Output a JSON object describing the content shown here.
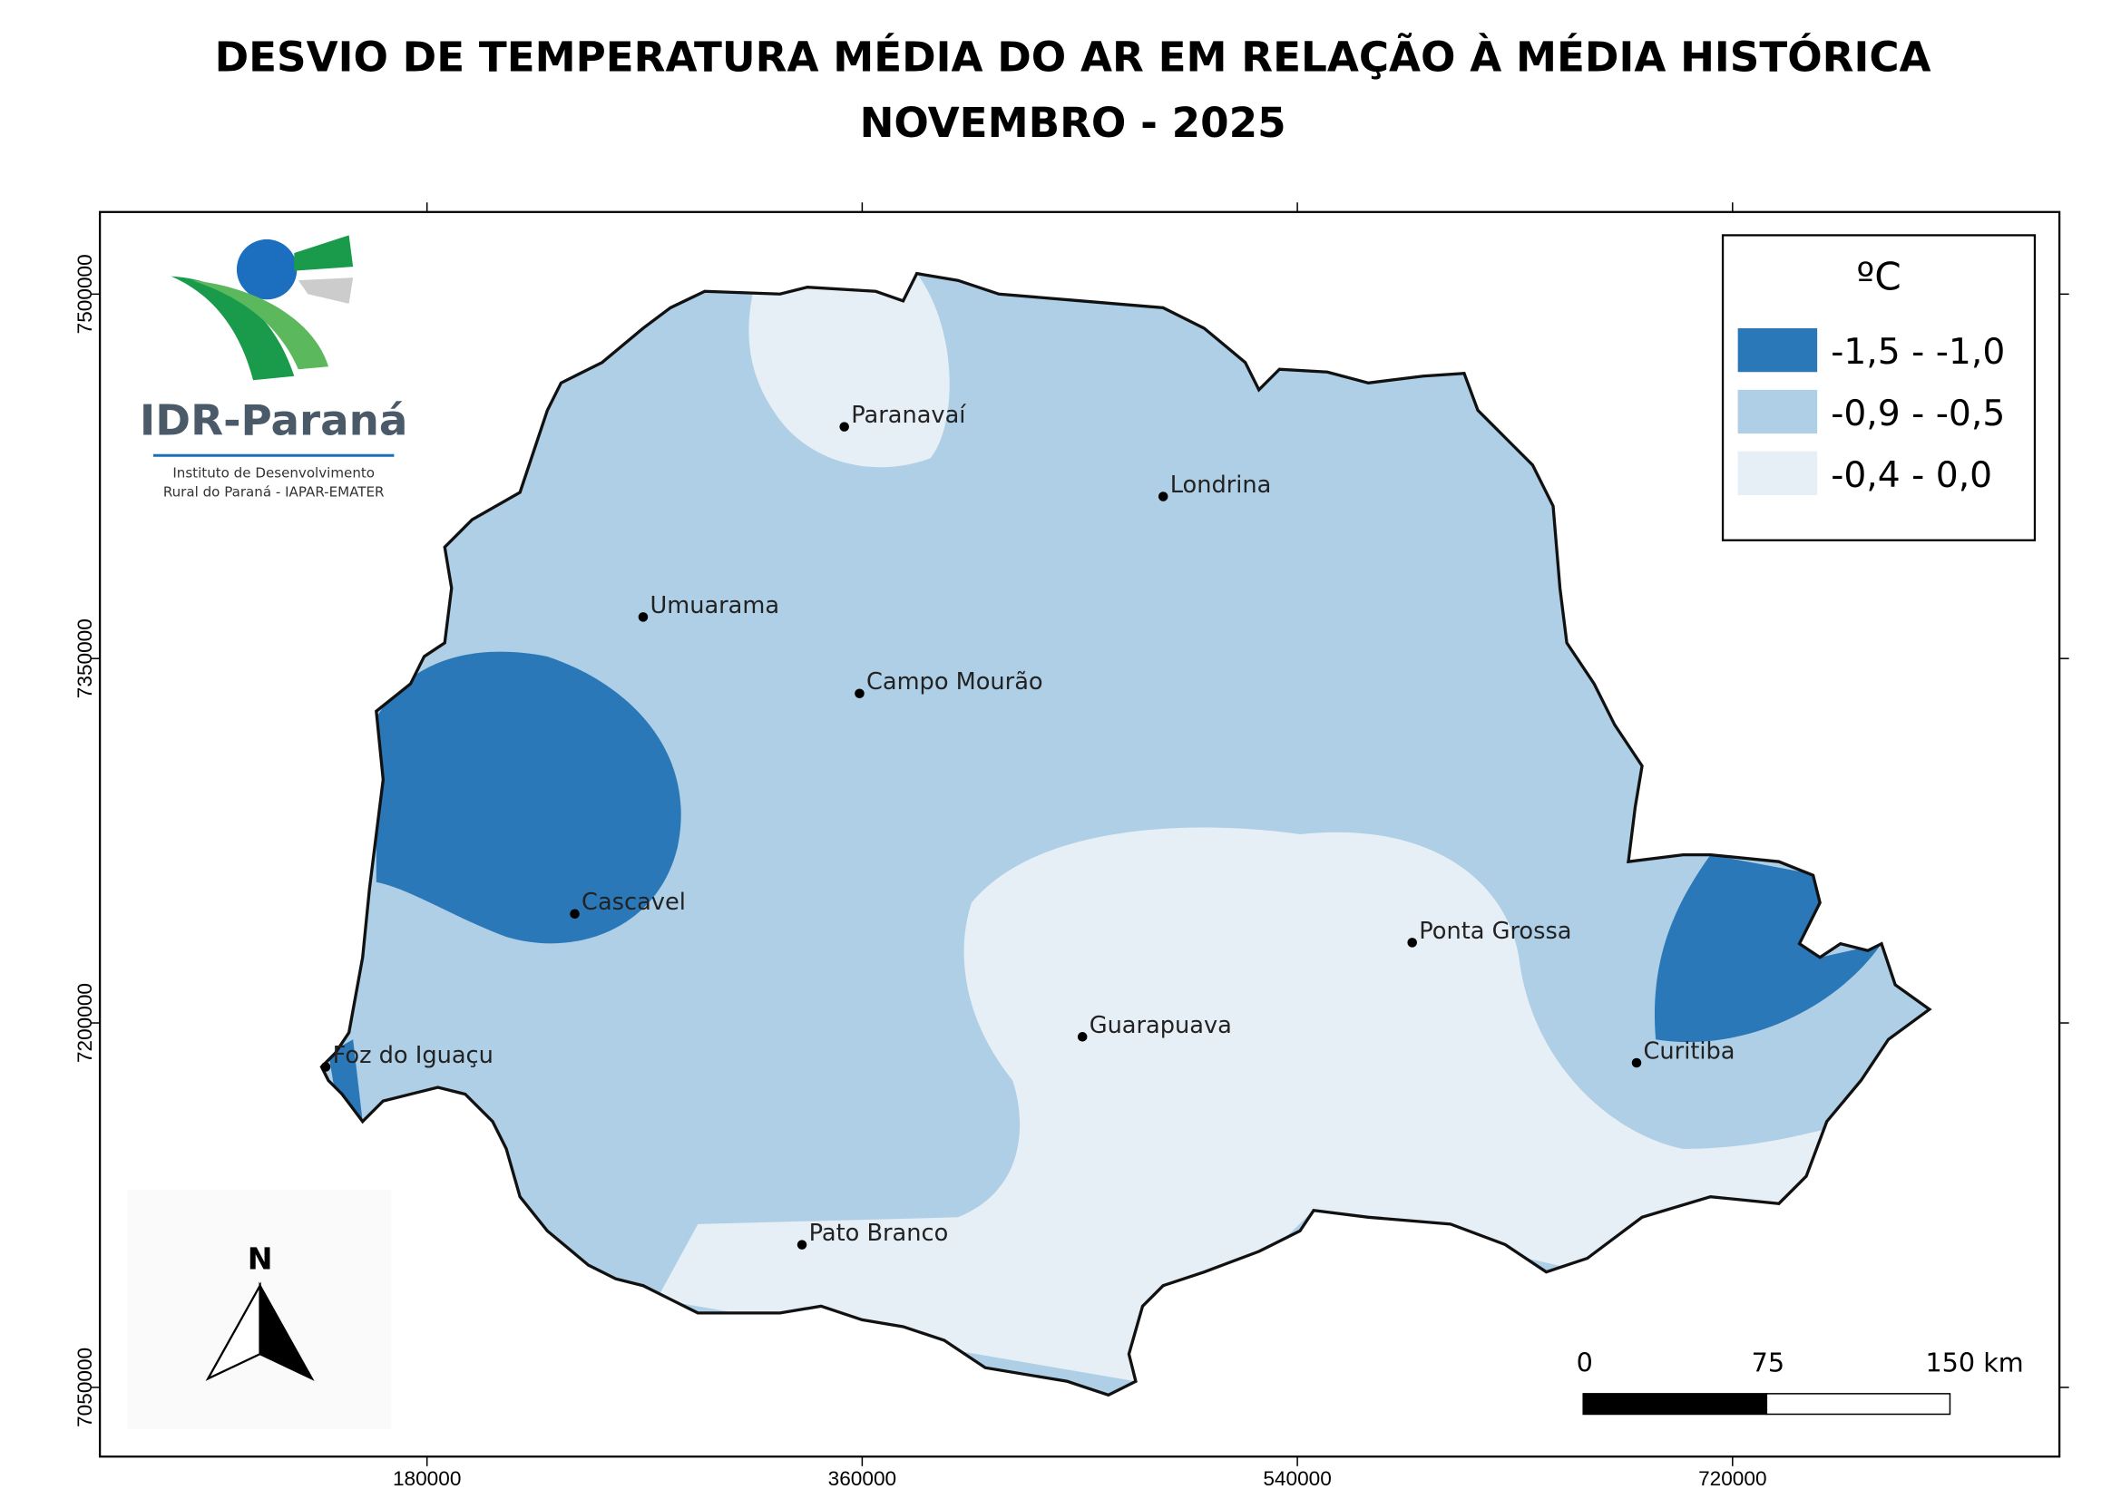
{
  "header": {
    "title": "DESVIO DE TEMPERATURA MÉDIA DO AR EM RELAÇÃO À MÉDIA HISTÓRICA",
    "subtitle": "NOVEMBRO - 2025"
  },
  "map": {
    "xlim": [
      44700,
      855200
    ],
    "ylim": [
      7021500,
      7533800
    ],
    "xticks": [
      180000,
      360000,
      540000,
      720000
    ],
    "yticks": [
      7050000,
      7200000,
      7350000,
      7500000
    ],
    "cities": [
      {
        "name": "Paranavaí",
        "x": 352600,
        "y": 7445400
      },
      {
        "name": "Londrina",
        "x": 484500,
        "y": 7416700
      },
      {
        "name": "Umuarama",
        "x": 269400,
        "y": 7367100
      },
      {
        "name": "Campo Mourão",
        "x": 358900,
        "y": 7335600
      },
      {
        "name": "Cascavel",
        "x": 241100,
        "y": 7244900
      },
      {
        "name": "Ponta Grossa",
        "x": 587500,
        "y": 7233100
      },
      {
        "name": "Guarapuava",
        "x": 451100,
        "y": 7194300
      },
      {
        "name": "Foz do Iguaçu",
        "x": 138100,
        "y": 7181900
      },
      {
        "name": "Curitiba",
        "x": 680300,
        "y": 7183600
      },
      {
        "name": "Pato Branco",
        "x": 335100,
        "y": 7108700
      }
    ]
  },
  "legend": {
    "title": "ºC",
    "items": [
      {
        "label": "-1,5 - -1,0",
        "color": "#2b78b8"
      },
      {
        "label": "-0,9 - -0,5",
        "color": "#aecfe6"
      },
      {
        "label": "-0,4 - 0,0",
        "color": "#e6eef6"
      }
    ]
  },
  "scale_bar": {
    "labels": [
      "0",
      "75",
      "150 km"
    ]
  },
  "logo": {
    "name": "IDR-Paraná",
    "line1": "Instituto de Desenvolvimento",
    "line2": "Rural do Paraná - IAPAR-EMATER"
  },
  "north_arrow": "N"
}
